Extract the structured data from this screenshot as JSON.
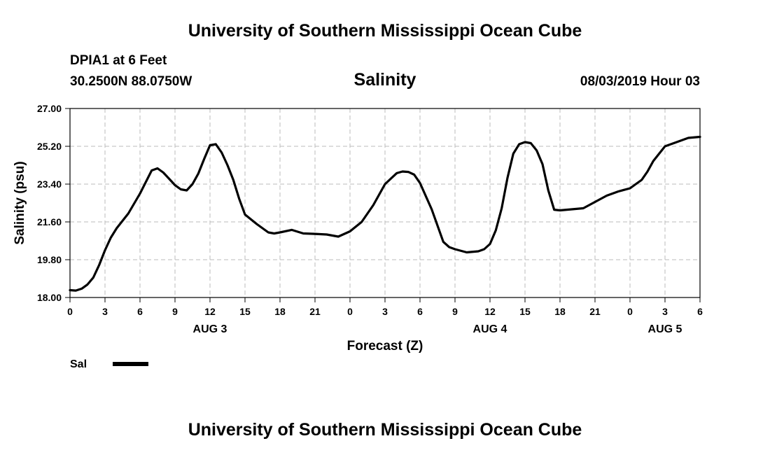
{
  "header": {
    "title": "University of Southern Mississippi Ocean Cube",
    "station": "DPIA1 at 6 Feet",
    "location": "30.2500N 88.0750W",
    "variable": "Salinity",
    "datetime": "08/03/2019 Hour 03"
  },
  "footer": {
    "title": "University of Southern Mississippi Ocean Cube"
  },
  "legend": {
    "label": "Sal"
  },
  "chart_data": {
    "type": "line",
    "title": "Salinity",
    "xlabel": "Forecast (Z)",
    "ylabel": "Salinity (psu)",
    "xlim": [
      0,
      54
    ],
    "ylim": [
      18.0,
      27.0
    ],
    "yticks": [
      "18.00",
      "19.80",
      "21.60",
      "23.40",
      "25.20",
      "27.00"
    ],
    "xticks": [
      "0",
      "3",
      "6",
      "9",
      "12",
      "15",
      "18",
      "21",
      "0",
      "3",
      "6",
      "9",
      "12",
      "15",
      "18",
      "21",
      "0",
      "3",
      "6"
    ],
    "day_labels": [
      {
        "label": "AUG 3",
        "hour": 12
      },
      {
        "label": "AUG 4",
        "hour": 36
      },
      {
        "label": "AUG 5",
        "hour": 51
      }
    ],
    "grid": true,
    "series": [
      {
        "name": "Sal",
        "color": "#000000",
        "x": [
          0,
          0.5,
          1,
          1.5,
          2,
          2.5,
          3,
          3.5,
          4,
          5,
          6,
          7,
          7.5,
          8,
          8.5,
          9,
          9.5,
          10,
          10.5,
          11,
          11.5,
          12,
          12.5,
          13,
          13.5,
          14,
          14.5,
          15,
          16,
          17,
          17.5,
          18,
          19,
          20,
          21,
          22,
          23,
          24,
          25,
          26,
          27,
          28,
          28.5,
          29,
          29.5,
          30,
          31,
          32,
          32.5,
          33,
          34,
          35,
          35.5,
          36,
          36.5,
          37,
          37.5,
          38,
          38.5,
          39,
          39.5,
          40,
          40.5,
          41,
          41.5,
          42,
          43,
          44,
          45,
          46,
          47,
          48,
          48.5,
          49,
          49.5,
          50,
          51,
          52,
          53,
          54
        ],
        "values": [
          18.35,
          18.33,
          18.42,
          18.62,
          18.95,
          19.55,
          20.25,
          20.85,
          21.3,
          22.0,
          22.95,
          24.05,
          24.15,
          23.95,
          23.65,
          23.35,
          23.15,
          23.1,
          23.4,
          23.9,
          24.6,
          25.25,
          25.3,
          24.9,
          24.3,
          23.6,
          22.7,
          21.95,
          21.5,
          21.1,
          21.05,
          21.1,
          21.22,
          21.05,
          21.03,
          21.0,
          20.9,
          21.15,
          21.6,
          22.4,
          23.4,
          23.92,
          24.0,
          23.98,
          23.85,
          23.45,
          22.2,
          20.65,
          20.4,
          20.3,
          20.15,
          20.2,
          20.3,
          20.55,
          21.2,
          22.25,
          23.7,
          24.85,
          25.3,
          25.4,
          25.35,
          25.0,
          24.35,
          23.1,
          22.18,
          22.15,
          22.2,
          22.25,
          22.55,
          22.85,
          23.05,
          23.2,
          23.4,
          23.6,
          24.0,
          24.5,
          25.2,
          25.4,
          25.6,
          25.65
        ]
      }
    ]
  }
}
